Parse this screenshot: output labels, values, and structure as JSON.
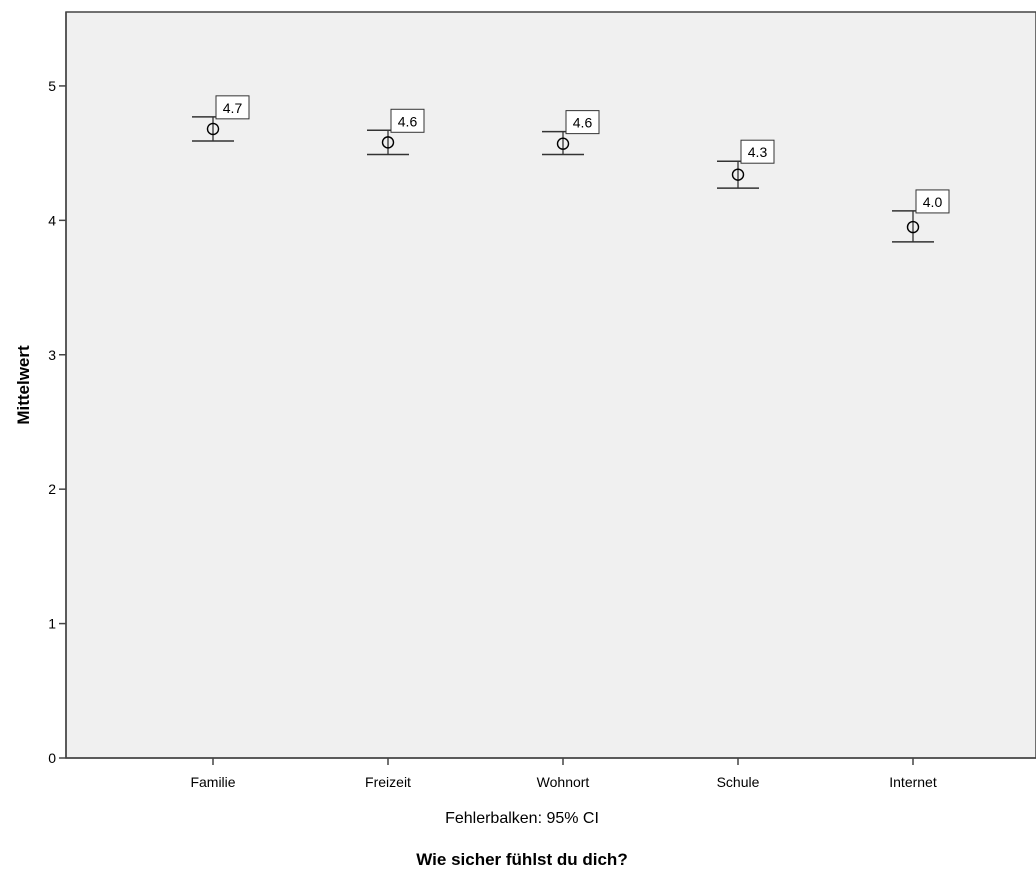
{
  "chart_data": {
    "type": "errorbar",
    "title": "",
    "xlabel": "Wie sicher fühlst du dich?",
    "ylabel": "Mittelwert",
    "note": "Fehlerbalken: 95% CI",
    "ylim": [
      0,
      5.55
    ],
    "yticks": [
      "0",
      "1",
      "2",
      "3",
      "4",
      "5"
    ],
    "grid": false,
    "categories": [
      "Familie",
      "Freizeit",
      "Wohnort",
      "Schule",
      "Internet"
    ],
    "means": [
      4.68,
      4.58,
      4.57,
      4.34,
      3.95
    ],
    "ci_low": [
      4.59,
      4.49,
      4.49,
      4.24,
      3.84
    ],
    "ci_high": [
      4.77,
      4.67,
      4.66,
      4.44,
      4.07
    ],
    "labels": [
      "4.7",
      "4.6",
      "4.6",
      "4.3",
      "4.0"
    ],
    "colors": {
      "plot_bg": "#f0f0f0",
      "marker": "#000000",
      "label_bg": "#ffffff"
    }
  }
}
